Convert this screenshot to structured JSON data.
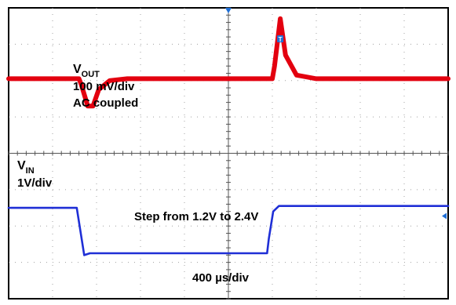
{
  "chart_data": {
    "type": "line",
    "title": "",
    "xlabel": "400 µs/div",
    "ylabel": "",
    "x_divisions": 10,
    "y_divisions": 8,
    "grid": true,
    "time_per_div": "400 µs/div",
    "series": [
      {
        "name": "VOUT",
        "scale": "100 mV/div",
        "coupling": "AC coupled",
        "color": "#e3000f",
        "x": [
          0,
          1.6,
          1.65,
          1.8,
          1.92,
          2.05,
          2.3,
          2.7,
          6.0,
          6.05,
          6.18,
          6.3,
          6.55,
          7.0,
          10
        ],
        "y": [
          2.05,
          2.05,
          1.9,
          1.3,
          1.3,
          1.75,
          2.0,
          2.05,
          2.05,
          2.4,
          3.7,
          2.7,
          2.15,
          2.05,
          2.05
        ]
      },
      {
        "name": "VIN",
        "scale": "1V/div",
        "color": "#1f2fd6",
        "x": [
          0,
          1.55,
          1.72,
          1.85,
          5.88,
          5.92,
          6.02,
          6.15,
          10
        ],
        "y": [
          -1.5,
          -1.5,
          -2.8,
          -2.75,
          -2.75,
          -2.35,
          -1.6,
          -1.45,
          -1.45
        ]
      }
    ]
  },
  "labels": {
    "vout_main": "V",
    "vout_sub": "OUT",
    "vout_scale": "100 mV/div",
    "vout_coupling": "AC coupled",
    "vin_main": "V",
    "vin_sub": "IN",
    "vin_scale": "1V/div",
    "step_note": "Step from 1.2V to 2.4V",
    "timebase": "400 µs/div"
  },
  "colors": {
    "vout": "#e3000f",
    "vin": "#1f2fd6",
    "trigger_marker": "#1f6fd6",
    "grid": "#8a8a8a",
    "frame": "#000000"
  },
  "markers": {
    "trigger_label": "T"
  }
}
